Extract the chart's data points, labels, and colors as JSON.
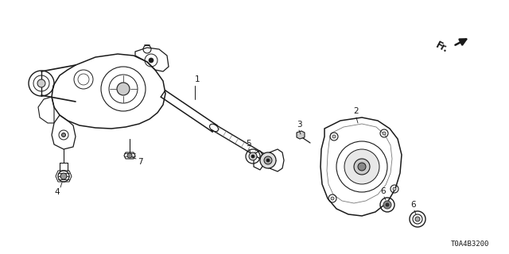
{
  "bg": "#ffffff",
  "lc": "#1a1a1a",
  "lc_gray": "#555555",
  "lc_lgray": "#aaaaaa",
  "fw": 6.4,
  "fh": 3.2,
  "dpi": 100,
  "fr_text": "Fr.",
  "part_code": "T0A4B3200",
  "labels": [
    "1",
    "2",
    "3",
    "4",
    "5",
    "6",
    "6",
    "7"
  ],
  "label_fs": 7.5
}
